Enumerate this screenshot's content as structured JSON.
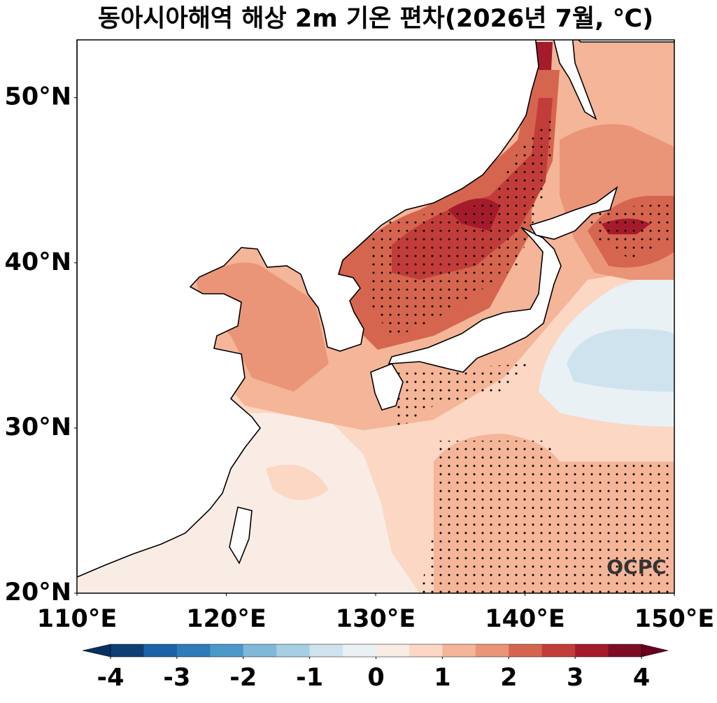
{
  "chart_data": {
    "type": "map",
    "title": "동아시아해역 해상 2m 기온 편차(2026년 7월, ℃)",
    "xlim": [
      110,
      150
    ],
    "ylim": [
      20,
      53.5
    ],
    "xticks": [
      {
        "value": 110,
        "label": "110°E"
      },
      {
        "value": 120,
        "label": "120°E"
      },
      {
        "value": 130,
        "label": "130°E"
      },
      {
        "value": 140,
        "label": "140°E"
      },
      {
        "value": 150,
        "label": "150°E"
      }
    ],
    "yticks": [
      {
        "value": 20,
        "label": "20°N"
      },
      {
        "value": 30,
        "label": "30°N"
      },
      {
        "value": 40,
        "label": "40°N"
      },
      {
        "value": 50,
        "label": "50°N"
      }
    ],
    "colorbar": {
      "lim": [
        -4,
        4
      ],
      "ticks": [
        -4,
        -3,
        -2,
        -1,
        0,
        1,
        2,
        3,
        4
      ],
      "colors": [
        "#0e3f74",
        "#1b62a8",
        "#2f7ab8",
        "#4b98c9",
        "#7fb8d9",
        "#a6cfe4",
        "#cfe3ef",
        "#e9f1f5",
        "#f8ece4",
        "#fbd7c4",
        "#f4b599",
        "#ea9478",
        "#d6654f",
        "#c23d3a",
        "#a51b2c",
        "#7d0d24"
      ],
      "under_color": "#08305f",
      "over_color": "#67001f"
    },
    "logo": "OCPC"
  }
}
